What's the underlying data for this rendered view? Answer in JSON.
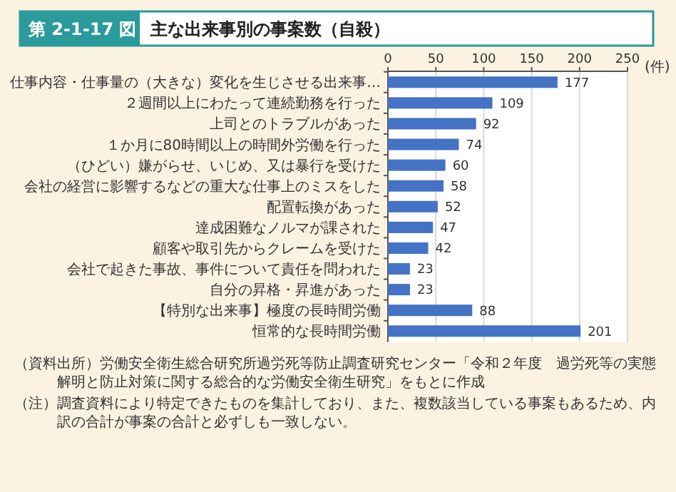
{
  "chart_data": {
    "type": "bar",
    "orientation": "horizontal",
    "title": "第 2-1-17 図 主な出来事別の事案数（自殺）",
    "xlabel": "(件)",
    "categories": [
      "仕事内容・仕事量の（大きな）変化を生じさせる出来事…",
      "２週間以上にわたって連続勤務を行った",
      "上司とのトラブルがあった",
      "１か月に80時間以上の時間外労働を行った",
      "（ひどい）嫌がらせ、いじめ、又は暴行を受けた",
      "会社の経営に影響するなどの重大な仕事上のミスをした",
      "配置転換があった",
      "達成困難なノルマが課された",
      "顧客や取引先からクレームを受けた",
      "会社で起きた事故、事件について責任を問われた",
      "自分の昇格・昇進があった",
      "【特別な出来事】極度の長時間労働",
      "恒常的な長時間労働"
    ],
    "values": [
      177,
      109,
      92,
      74,
      60,
      58,
      52,
      47,
      42,
      23,
      23,
      88,
      201
    ],
    "color": "#4472c4",
    "xlim": [
      0,
      250
    ],
    "xticks": [
      0,
      50,
      100,
      150,
      200,
      250
    ],
    "grid": "x",
    "data_labels": true,
    "annotations": [
      "（資料出所）労働安全衛生総合研究所過労死等防止調査研究センター「令和２年度　過労死等の実態解明と防止対策に関する総合的な労働安全衛生研究」をもとに作成",
      "（注）調査資料により特定できたものを集計しており、また、複数該当している事案もあるため、内訳の合計が事案の合計と必ずしも一致しない。"
    ]
  }
}
